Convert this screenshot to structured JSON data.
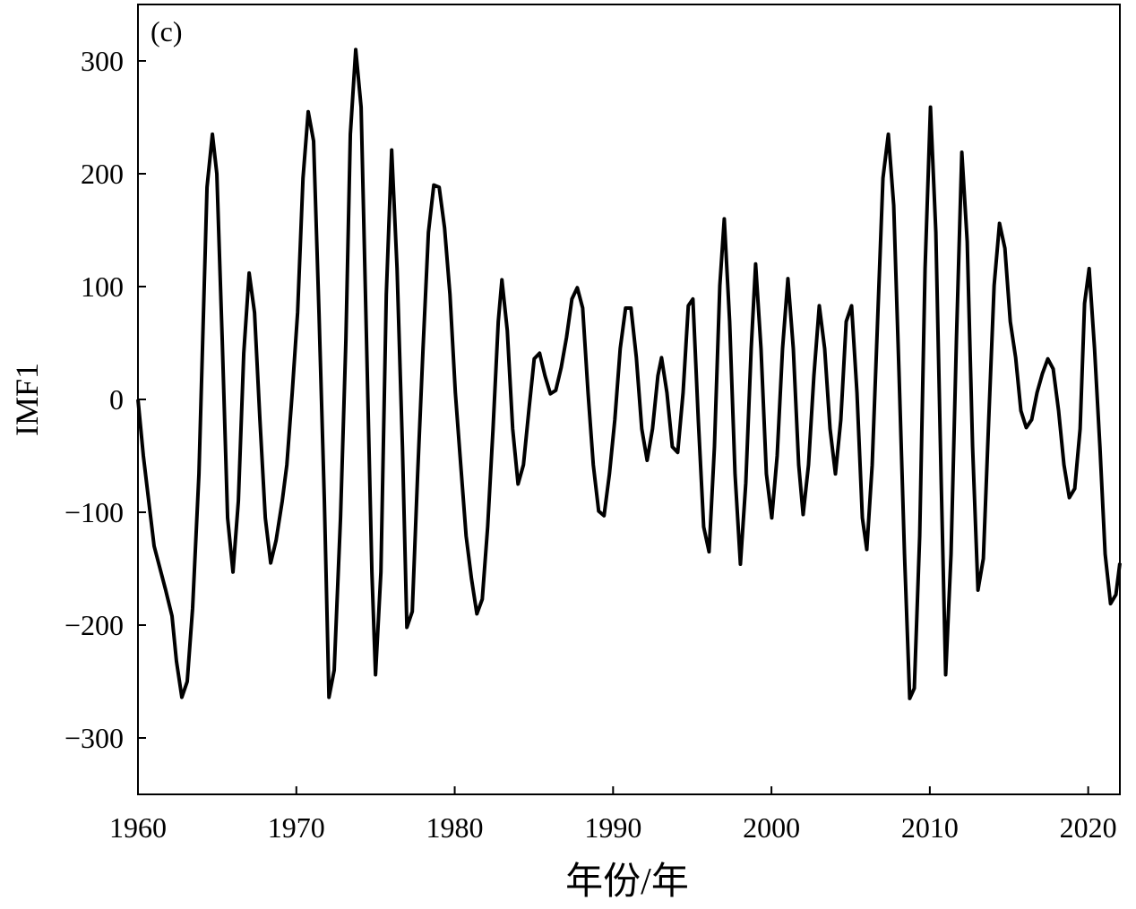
{
  "chart_data": {
    "type": "line",
    "annotation": "(c)",
    "xlabel": "年份/年",
    "ylabel": "IMF1",
    "x": [
      1960,
      1960.34,
      1961.02,
      1961.75,
      1962.15,
      1962.43,
      1962.77,
      1963.11,
      1963.45,
      1963.85,
      1964.36,
      1964.7,
      1964.98,
      1965.32,
      1965.66,
      1966.0,
      1966.34,
      1966.68,
      1967.02,
      1967.36,
      1967.7,
      1968.04,
      1968.38,
      1968.72,
      1969.11,
      1969.4,
      1969.74,
      1970.08,
      1970.42,
      1970.75,
      1971.09,
      1971.43,
      1971.77,
      1972.06,
      1972.39,
      1972.79,
      1973.13,
      1973.41,
      1973.75,
      1974.09,
      1974.43,
      1974.77,
      1975.0,
      1975.34,
      1975.68,
      1976.02,
      1976.36,
      1976.7,
      1976.98,
      1977.32,
      1977.66,
      1978.0,
      1978.34,
      1978.68,
      1979.02,
      1979.36,
      1979.7,
      1980.04,
      1980.38,
      1980.72,
      1981.06,
      1981.4,
      1981.74,
      1982.08,
      1982.42,
      1982.75,
      1982.98,
      1983.32,
      1983.66,
      1984.0,
      1984.34,
      1984.68,
      1985.02,
      1985.36,
      1985.7,
      1986.04,
      1986.38,
      1986.72,
      1987.06,
      1987.4,
      1987.74,
      1988.08,
      1988.42,
      1988.75,
      1989.09,
      1989.43,
      1989.77,
      1990.11,
      1990.45,
      1990.79,
      1991.13,
      1991.47,
      1991.81,
      1992.15,
      1992.49,
      1992.83,
      1993.06,
      1993.4,
      1993.74,
      1994.08,
      1994.42,
      1994.75,
      1995.04,
      1995.38,
      1995.72,
      1996.06,
      1996.4,
      1996.74,
      1997.02,
      1997.36,
      1997.7,
      1998.04,
      1998.38,
      1998.72,
      1999.0,
      1999.34,
      1999.68,
      2000.02,
      2000.36,
      2000.7,
      2001.04,
      2001.38,
      2001.72,
      2002.0,
      2002.34,
      2002.68,
      2003.02,
      2003.36,
      2003.7,
      2004.04,
      2004.38,
      2004.72,
      2005.06,
      2005.4,
      2005.74,
      2006.02,
      2006.36,
      2006.7,
      2007.04,
      2007.38,
      2007.72,
      2008.06,
      2008.4,
      2008.73,
      2009.02,
      2009.36,
      2009.7,
      2010.04,
      2010.38,
      2010.72,
      2011.0,
      2011.34,
      2011.68,
      2012.02,
      2012.36,
      2012.7,
      2013.04,
      2013.38,
      2013.72,
      2014.06,
      2014.4,
      2014.74,
      2015.08,
      2015.42,
      2015.75,
      2016.09,
      2016.43,
      2016.77,
      2017.11,
      2017.45,
      2017.79,
      2018.13,
      2018.47,
      2018.81,
      2019.15,
      2019.49,
      2019.77,
      2020.06,
      2020.4,
      2020.74,
      2021.07,
      2021.41,
      2021.75,
      2022
    ],
    "series": [
      {
        "name": "IMF1",
        "color": "#000000",
        "values": [
          0,
          -50,
          -130,
          -169,
          -192,
          -232,
          -264,
          -250,
          -185,
          -66,
          188,
          235,
          200,
          53,
          -105,
          -153,
          -90,
          41,
          112,
          77,
          -18,
          -105,
          -145,
          -125,
          -90,
          -58,
          6,
          77,
          196,
          255,
          229,
          77,
          -90,
          -264,
          -240,
          -105,
          53,
          235,
          310,
          259,
          53,
          -153,
          -244,
          -153,
          93,
          221,
          116,
          -42,
          -202,
          -188,
          -66,
          45,
          148,
          190,
          188,
          152,
          93,
          6,
          -58,
          -121,
          -159,
          -190,
          -177,
          -113,
          -26,
          69,
          106,
          61,
          -26,
          -75,
          -58,
          -10,
          36,
          41,
          21,
          5,
          8,
          28,
          55,
          89,
          99,
          81,
          6,
          -58,
          -99,
          -103,
          -66,
          -18,
          45,
          81,
          81,
          37,
          -26,
          -54,
          -26,
          21,
          37,
          6,
          -42,
          -47,
          6,
          83,
          89,
          -18,
          -113,
          -135,
          -42,
          101,
          160,
          69,
          -66,
          -146,
          -74,
          45,
          120,
          45,
          -66,
          -105,
          -50,
          45,
          107,
          45,
          -58,
          -102,
          -58,
          21,
          83,
          45,
          -26,
          -66,
          -18,
          69,
          83,
          6,
          -105,
          -133,
          -58,
          69,
          196,
          235,
          172,
          21,
          -137,
          -265,
          -256,
          -121,
          116,
          259,
          148,
          -74,
          -244,
          -137,
          53,
          219,
          140,
          -42,
          -169,
          -141,
          -18,
          101,
          156,
          134,
          69,
          37,
          -10,
          -25,
          -18,
          6,
          23,
          36,
          27,
          -10,
          -58,
          -87,
          -79,
          -26,
          85,
          116,
          45,
          -42,
          -137,
          -181,
          -173,
          -145
        ]
      }
    ],
    "xlim": [
      1960,
      2022
    ],
    "xticks": [
      1960,
      1970,
      1980,
      1990,
      2000,
      2010,
      2020
    ],
    "ylim": [
      -350,
      350
    ],
    "yticks": [
      {
        "value": -300,
        "label": "−300"
      },
      {
        "value": -200,
        "label": "−200"
      },
      {
        "value": -100,
        "label": "−100"
      },
      0,
      100,
      200,
      300
    ]
  }
}
